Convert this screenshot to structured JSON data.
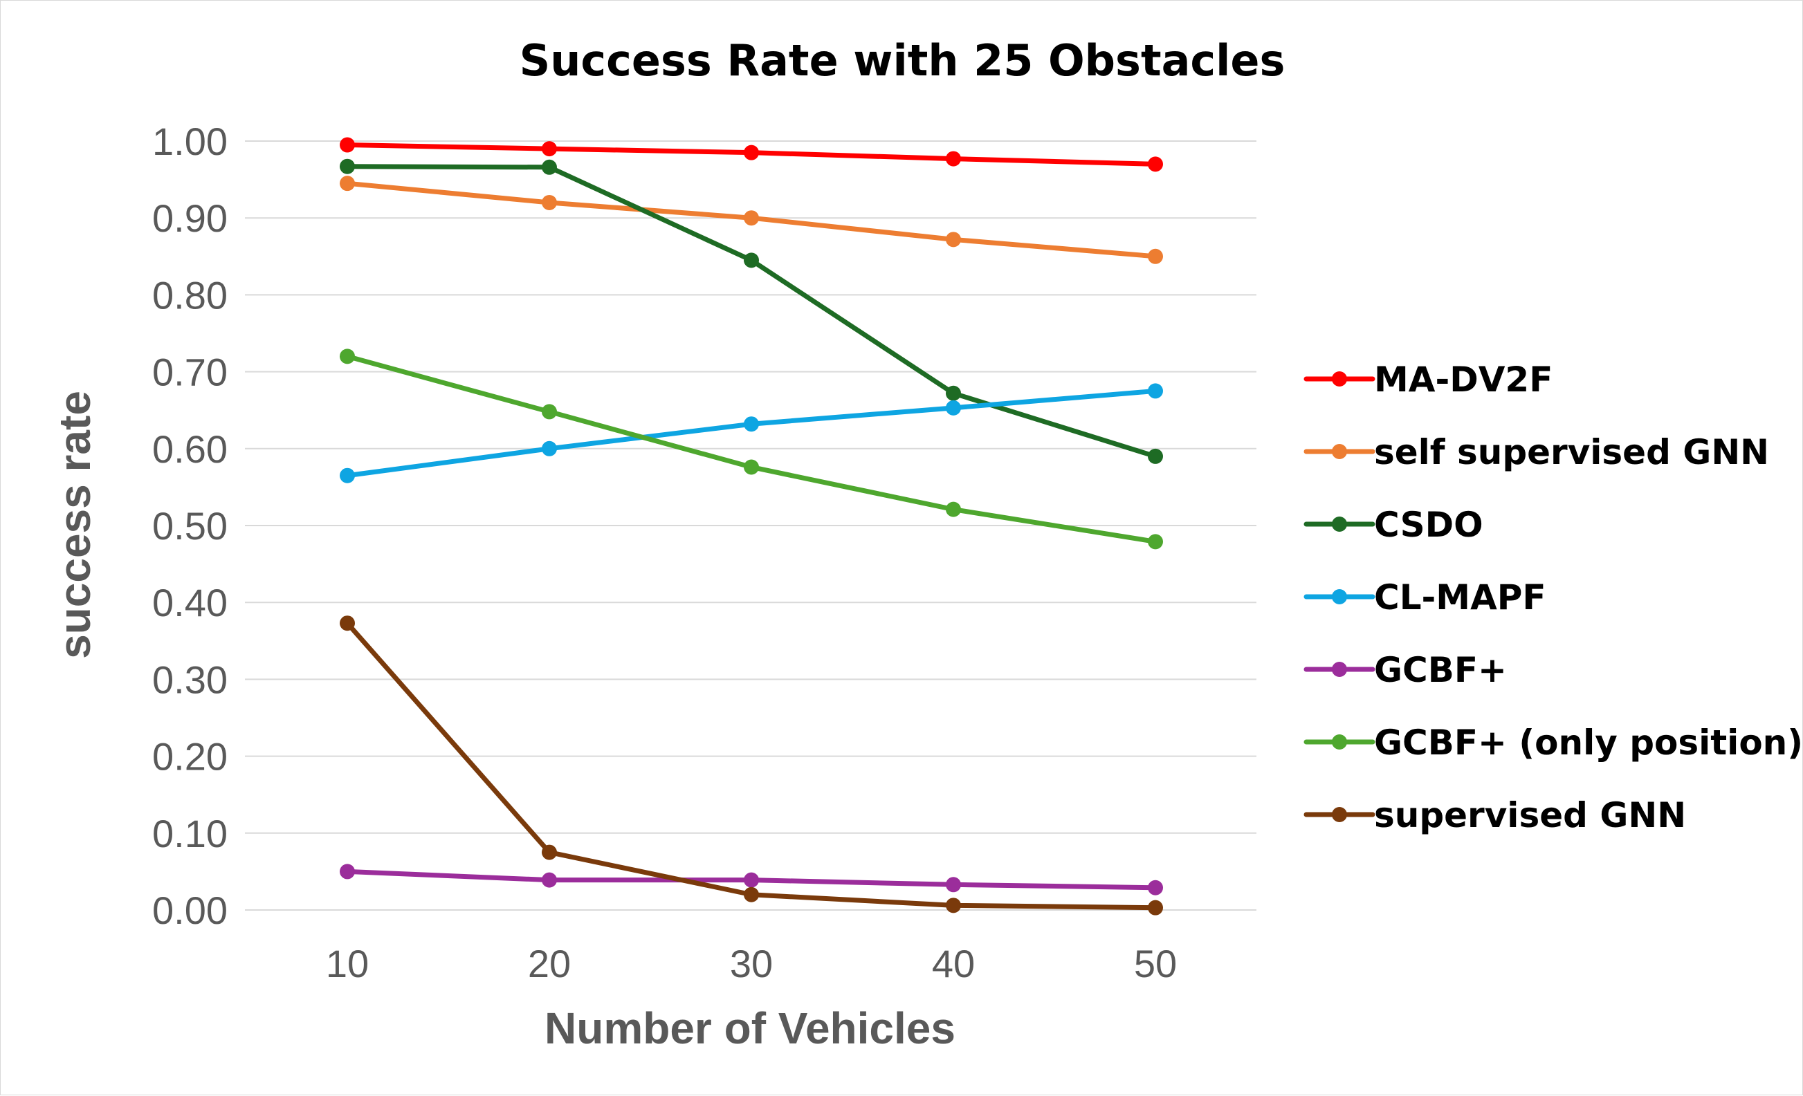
{
  "chart_data": {
    "type": "line",
    "title": "Success Rate with 25 Obstacles",
    "xlabel": "Number of Vehicles",
    "ylabel": "success rate",
    "categories": [
      "10",
      "20",
      "30",
      "40",
      "50"
    ],
    "ylim": [
      0,
      1
    ],
    "yticks": [
      "0.00",
      "0.10",
      "0.20",
      "0.30",
      "0.40",
      "0.50",
      "0.60",
      "0.70",
      "0.80",
      "0.90",
      "1.00"
    ],
    "grid": true,
    "legend_position": "right",
    "series": [
      {
        "name": "MA-DV2F",
        "color": "#ff0000",
        "values": [
          0.995,
          0.99,
          0.985,
          0.977,
          0.97
        ]
      },
      {
        "name": "self supervised GNN",
        "color": "#ed7d31",
        "values": [
          0.945,
          0.92,
          0.9,
          0.872,
          0.85
        ]
      },
      {
        "name": "CSDO",
        "color": "#1e6b24",
        "values": [
          0.967,
          0.966,
          0.845,
          0.672,
          0.59
        ]
      },
      {
        "name": "CL-MAPF",
        "color": "#0ea5e2",
        "values": [
          0.565,
          0.6,
          0.632,
          0.653,
          0.675
        ]
      },
      {
        "name": "GCBF+",
        "color": "#9b2d9b",
        "values": [
          0.05,
          0.039,
          0.039,
          0.033,
          0.029
        ]
      },
      {
        "name": "GCBF+ (only position)",
        "color": "#4ea72e",
        "values": [
          0.72,
          0.648,
          0.576,
          0.521,
          0.479
        ]
      },
      {
        "name": "supervised GNN",
        "color": "#7a3a0b",
        "values": [
          0.373,
          0.075,
          0.02,
          0.006,
          0.003
        ]
      }
    ]
  }
}
